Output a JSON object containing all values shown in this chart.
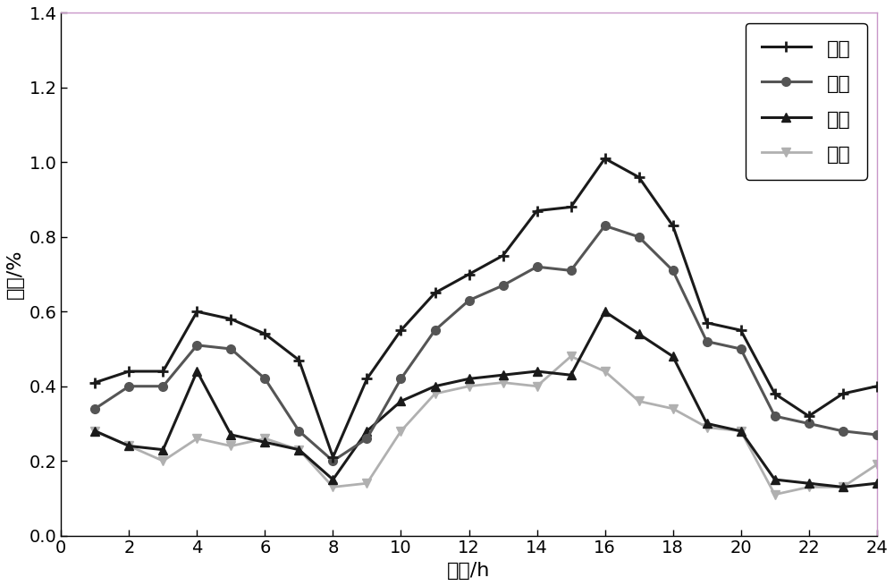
{
  "x": [
    1,
    2,
    3,
    4,
    5,
    6,
    7,
    8,
    9,
    10,
    11,
    12,
    13,
    14,
    15,
    16,
    17,
    18,
    19,
    20,
    21,
    22,
    23,
    24
  ],
  "winter": [
    0.41,
    0.44,
    0.44,
    0.6,
    0.58,
    0.54,
    0.47,
    0.21,
    0.42,
    0.55,
    0.65,
    0.7,
    0.75,
    0.87,
    0.88,
    1.01,
    0.96,
    0.83,
    0.57,
    0.55,
    0.38,
    0.32,
    0.38,
    0.4
  ],
  "spring": [
    0.34,
    0.4,
    0.4,
    0.51,
    0.5,
    0.42,
    0.28,
    0.2,
    0.26,
    0.42,
    0.55,
    0.63,
    0.67,
    0.72,
    0.71,
    0.83,
    0.8,
    0.71,
    0.52,
    0.5,
    0.32,
    0.3,
    0.28,
    0.27
  ],
  "autumn": [
    0.28,
    0.24,
    0.23,
    0.44,
    0.27,
    0.25,
    0.23,
    0.15,
    0.28,
    0.36,
    0.4,
    0.42,
    0.43,
    0.44,
    0.43,
    0.6,
    0.54,
    0.48,
    0.3,
    0.28,
    0.15,
    0.14,
    0.13,
    0.14
  ],
  "summer": [
    0.28,
    0.24,
    0.2,
    0.26,
    0.24,
    0.26,
    0.23,
    0.13,
    0.14,
    0.28,
    0.38,
    0.4,
    0.41,
    0.4,
    0.48,
    0.44,
    0.36,
    0.34,
    0.29,
    0.28,
    0.11,
    0.13,
    0.13,
    0.19
  ],
  "winter_color": "#1a1a1a",
  "spring_color": "#555555",
  "autumn_color": "#1a1a1a",
  "summer_color": "#b0b0b0",
  "xlabel": "时刻/h",
  "ylabel": "出力/%",
  "xlim": [
    0,
    24
  ],
  "ylim": [
    0,
    1.4
  ],
  "xticks": [
    0,
    2,
    4,
    6,
    8,
    10,
    12,
    14,
    16,
    18,
    20,
    22,
    24
  ],
  "yticks": [
    0,
    0.2,
    0.4,
    0.6,
    0.8,
    1.0,
    1.2,
    1.4
  ],
  "legend_labels": [
    "冬季",
    "春季",
    "秋季",
    "夏季"
  ],
  "border_color": "#c8aac8",
  "top_border_color": "#c896c8"
}
